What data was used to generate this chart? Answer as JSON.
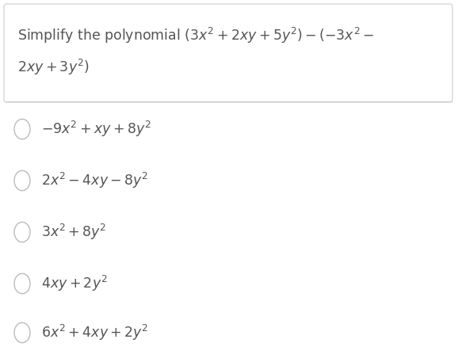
{
  "question_line1": "Simplify the polynomial $(3x^2 + 2xy + 5y^2) - (-3x^2 -$",
  "question_line2": "$2xy + 3y^2)$",
  "options": [
    "$-9x^2 + xy + 8y^2$",
    "$2x^2 - 4xy - 8y^2$",
    "$3x^2 + 8y^2$",
    "$4xy + 2y^2$",
    "$6x^2 + 4xy + 2y^2$"
  ],
  "bg_color": "#ffffff",
  "text_color": "#555555",
  "circle_color": "#bbbbbb",
  "question_border": "#cccccc",
  "font_size_question": 12.5,
  "font_size_options": 12.5,
  "fig_width": 5.78,
  "fig_height": 4.57,
  "dpi": 100
}
